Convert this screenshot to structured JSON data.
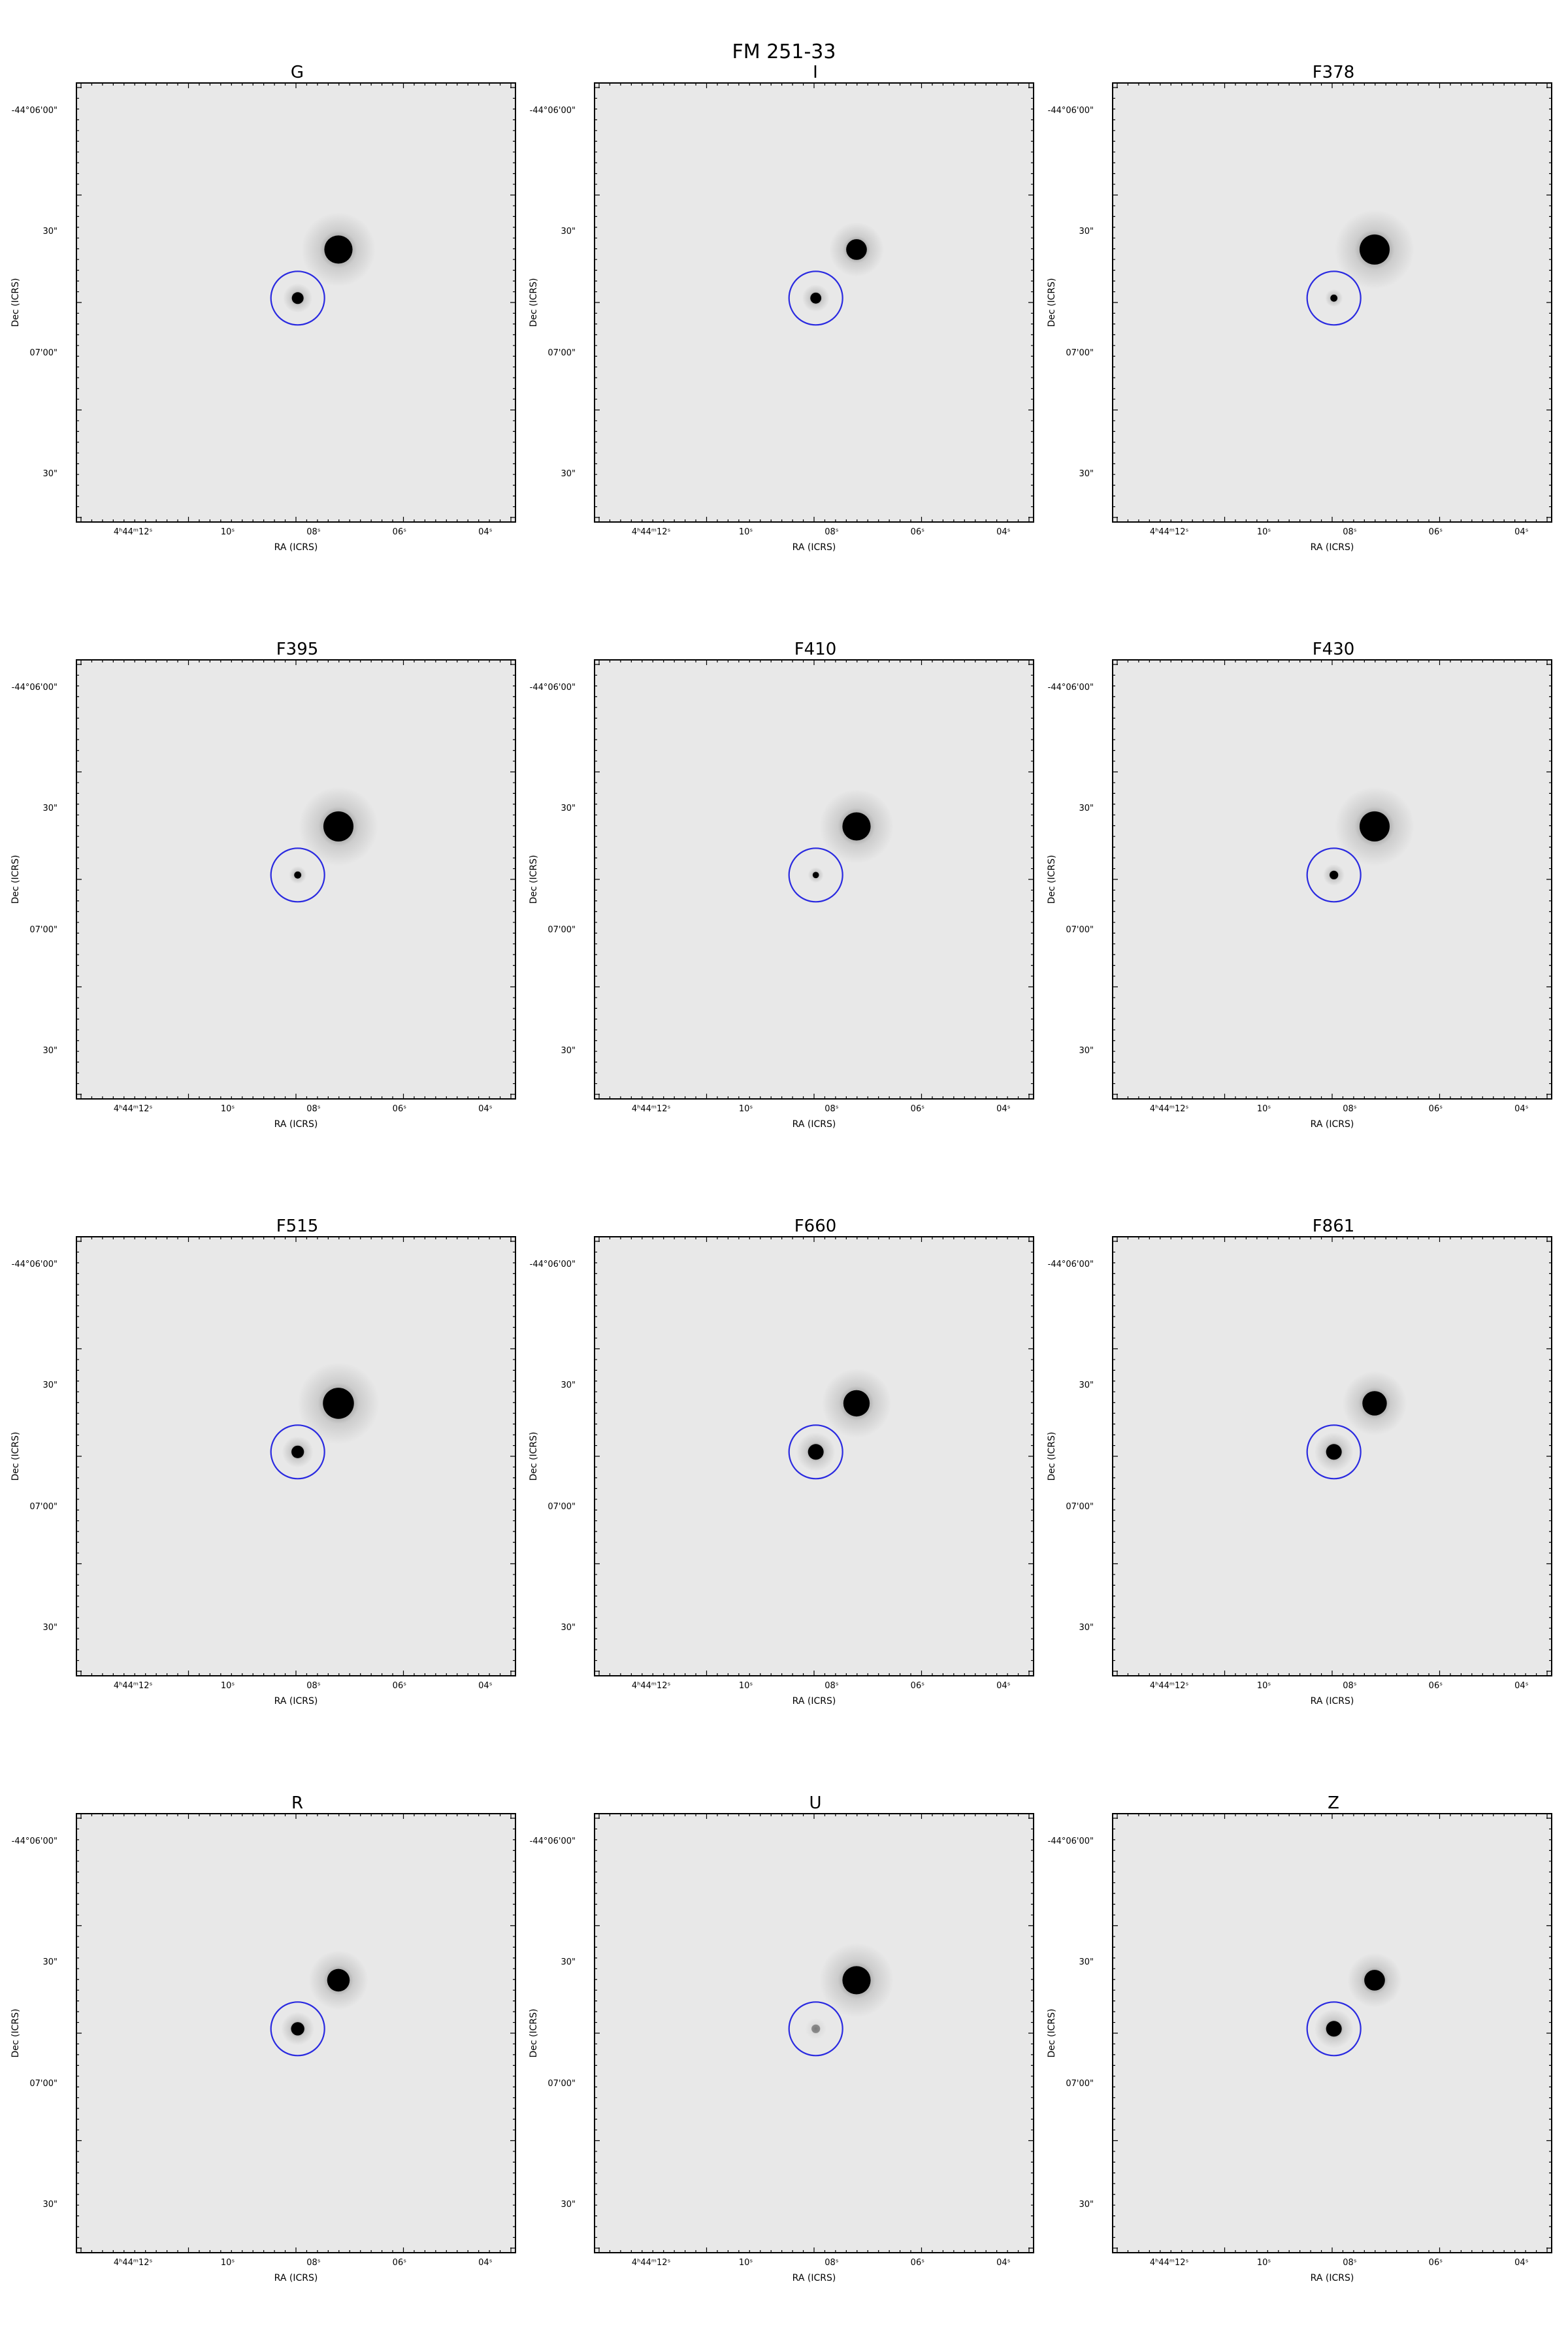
{
  "figure": {
    "title": "FM 251-33",
    "x_axis_label": "RA (ICRS)",
    "y_axis_label": "Dec (ICRS)",
    "x_tick_labels": [
      "4ʰ44ᵐ12ˢ",
      "10ˢ",
      "08ˢ",
      "06ˢ",
      "04ˢ"
    ],
    "y_tick_labels": [
      "-44°06'00\"",
      "30\"",
      "07'00\"",
      "30\""
    ],
    "circle_color": "#2a2ae0",
    "background_gray": "#e8e8e8"
  },
  "panels": [
    {
      "filter": "G"
    },
    {
      "filter": "I"
    },
    {
      "filter": "F378"
    },
    {
      "filter": "F395"
    },
    {
      "filter": "F410"
    },
    {
      "filter": "F430"
    },
    {
      "filter": "F515"
    },
    {
      "filter": "F660"
    },
    {
      "filter": "F861"
    },
    {
      "filter": "R"
    },
    {
      "filter": "U"
    },
    {
      "filter": "Z"
    }
  ]
}
